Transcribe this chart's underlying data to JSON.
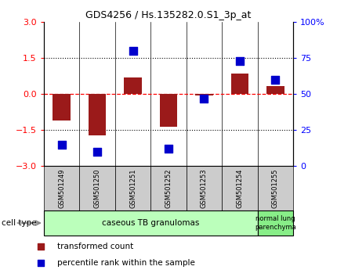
{
  "title": "GDS4256 / Hs.135282.0.S1_3p_at",
  "samples": [
    "GSM501249",
    "GSM501250",
    "GSM501251",
    "GSM501252",
    "GSM501253",
    "GSM501254",
    "GSM501255"
  ],
  "transformed_counts": [
    -1.1,
    -1.7,
    0.7,
    -1.35,
    -0.05,
    0.85,
    0.35
  ],
  "percentile_ranks": [
    15,
    10,
    80,
    12,
    47,
    73,
    60
  ],
  "bar_color": "#9B1A1A",
  "dot_color": "#0000CC",
  "left_ylim": [
    -3,
    3
  ],
  "right_ylim": [
    0,
    100
  ],
  "left_yticks": [
    -3,
    -1.5,
    0,
    1.5,
    3
  ],
  "right_yticks": [
    0,
    25,
    50,
    75,
    100
  ],
  "right_yticklabels": [
    "0",
    "25",
    "50",
    "75",
    "100%"
  ],
  "groups": [
    {
      "label": "caseous TB granulomas",
      "samples_range": [
        0,
        5
      ],
      "color": "#BBFFBB"
    },
    {
      "label": "normal lung\nparenchyma",
      "samples_range": [
        6,
        6
      ],
      "color": "#88EE88"
    }
  ],
  "cell_type_label": "cell type",
  "legend_items": [
    {
      "color": "#9B1A1A",
      "label": "transformed count"
    },
    {
      "color": "#0000CC",
      "label": "percentile rank within the sample"
    }
  ],
  "background_color": "#FFFFFF",
  "bar_width": 0.5,
  "dot_size": 55
}
